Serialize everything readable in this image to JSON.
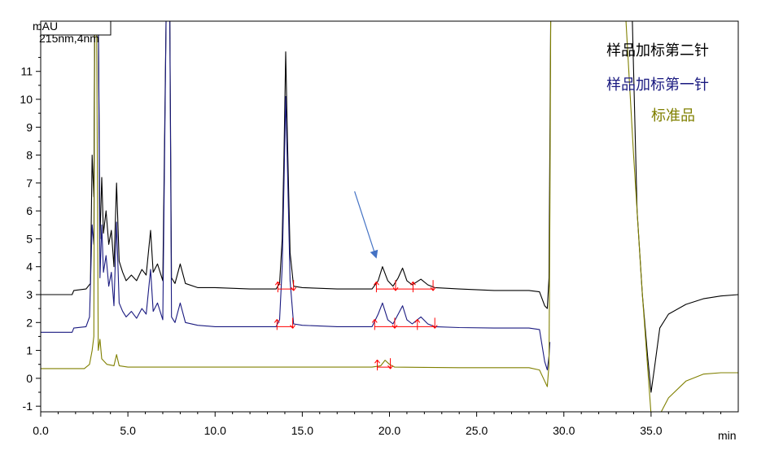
{
  "chart_data": {
    "type": "line",
    "title": "",
    "subtitle": "",
    "y_unit": "mAU",
    "detector_note": "215nm,4nm",
    "x_unit": "min",
    "xlim": [
      0,
      40
    ],
    "ylim": [
      -1.2,
      12.8
    ],
    "x_ticks": [
      0,
      5,
      10,
      15,
      20,
      25,
      30,
      35
    ],
    "x_tick_labels": [
      "0.0",
      "5.0",
      "10.0",
      "15.0",
      "20.0",
      "25.0",
      "30.0",
      "35.0"
    ],
    "y_ticks": [
      -1,
      0,
      1,
      2,
      3,
      4,
      5,
      6,
      7,
      8,
      9,
      10,
      11
    ],
    "y_tick_labels": [
      "-1",
      "0",
      "1",
      "2",
      "3",
      "4",
      "5",
      "6",
      "7",
      "8",
      "9",
      "10",
      "11"
    ],
    "grid": false,
    "legend_position": "top-right",
    "series": [
      {
        "name": "样品加标第二针",
        "color": "#000000",
        "baseline": 3.0,
        "points": [
          [
            0,
            3.0
          ],
          [
            1.8,
            3.0
          ],
          [
            1.9,
            3.15
          ],
          [
            2.6,
            3.2
          ],
          [
            2.85,
            3.4
          ],
          [
            2.95,
            8.0
          ],
          [
            3.05,
            6.5
          ],
          [
            3.1,
            13.5
          ],
          [
            3.3,
            13.5
          ],
          [
            3.4,
            5.0
          ],
          [
            3.5,
            7.2
          ],
          [
            3.6,
            5.2
          ],
          [
            3.75,
            6.0
          ],
          [
            3.9,
            4.8
          ],
          [
            4.05,
            5.3
          ],
          [
            4.2,
            4.0
          ],
          [
            4.35,
            7.0
          ],
          [
            4.5,
            4.2
          ],
          [
            4.7,
            3.8
          ],
          [
            4.9,
            3.5
          ],
          [
            5.2,
            3.7
          ],
          [
            5.5,
            3.5
          ],
          [
            5.8,
            3.9
          ],
          [
            6.05,
            3.7
          ],
          [
            6.3,
            5.3
          ],
          [
            6.45,
            3.8
          ],
          [
            6.7,
            4.1
          ],
          [
            7.0,
            3.5
          ],
          [
            7.2,
            13.5
          ],
          [
            7.4,
            13.5
          ],
          [
            7.5,
            3.6
          ],
          [
            7.7,
            3.4
          ],
          [
            8.0,
            4.1
          ],
          [
            8.3,
            3.4
          ],
          [
            9.0,
            3.25
          ],
          [
            10,
            3.25
          ],
          [
            12,
            3.2
          ],
          [
            13.5,
            3.2
          ],
          [
            13.7,
            3.4
          ],
          [
            13.85,
            5.0
          ],
          [
            13.95,
            8.0
          ],
          [
            14.05,
            11.7
          ],
          [
            14.15,
            8.5
          ],
          [
            14.3,
            4.5
          ],
          [
            14.5,
            3.3
          ],
          [
            15,
            3.25
          ],
          [
            17,
            3.2
          ],
          [
            19,
            3.2
          ],
          [
            19.35,
            3.5
          ],
          [
            19.6,
            4.0
          ],
          [
            19.9,
            3.5
          ],
          [
            20.2,
            3.3
          ],
          [
            20.5,
            3.6
          ],
          [
            20.75,
            3.95
          ],
          [
            21.0,
            3.5
          ],
          [
            21.3,
            3.35
          ],
          [
            21.8,
            3.55
          ],
          [
            22.2,
            3.35
          ],
          [
            22.6,
            3.25
          ],
          [
            24,
            3.2
          ],
          [
            26,
            3.15
          ],
          [
            28,
            3.15
          ],
          [
            28.6,
            3.1
          ],
          [
            28.9,
            2.6
          ],
          [
            29.05,
            2.5
          ],
          [
            29.15,
            3.6
          ],
          [
            29.25,
            13.5
          ],
          [
            33.9,
            13.5
          ],
          [
            34.2,
            6.0
          ],
          [
            34.5,
            3.0
          ],
          [
            34.8,
            0.8
          ],
          [
            35.0,
            -0.5
          ],
          [
            35.2,
            0.4
          ],
          [
            35.5,
            1.8
          ],
          [
            36,
            2.3
          ],
          [
            37,
            2.65
          ],
          [
            38,
            2.85
          ],
          [
            39,
            2.95
          ],
          [
            40,
            3.0
          ]
        ]
      },
      {
        "name": "样品加标第一针",
        "color": "#1a1a80",
        "baseline": 1.7,
        "points": [
          [
            0,
            1.65
          ],
          [
            1.8,
            1.65
          ],
          [
            1.9,
            1.8
          ],
          [
            2.6,
            1.85
          ],
          [
            2.8,
            2.2
          ],
          [
            2.95,
            5.5
          ],
          [
            3.05,
            4.8
          ],
          [
            3.1,
            13.5
          ],
          [
            3.3,
            13.5
          ],
          [
            3.4,
            3.6
          ],
          [
            3.5,
            5.5
          ],
          [
            3.6,
            3.8
          ],
          [
            3.75,
            4.4
          ],
          [
            3.9,
            3.3
          ],
          [
            4.05,
            3.8
          ],
          [
            4.2,
            2.6
          ],
          [
            4.35,
            5.6
          ],
          [
            4.5,
            2.7
          ],
          [
            4.7,
            2.4
          ],
          [
            4.9,
            2.2
          ],
          [
            5.2,
            2.4
          ],
          [
            5.5,
            2.15
          ],
          [
            5.8,
            2.5
          ],
          [
            6.05,
            2.3
          ],
          [
            6.3,
            3.9
          ],
          [
            6.45,
            2.4
          ],
          [
            6.7,
            2.7
          ],
          [
            7.0,
            2.1
          ],
          [
            7.2,
            13.5
          ],
          [
            7.4,
            13.5
          ],
          [
            7.5,
            2.2
          ],
          [
            7.7,
            2.0
          ],
          [
            8.0,
            2.7
          ],
          [
            8.3,
            2.0
          ],
          [
            9.0,
            1.9
          ],
          [
            10,
            1.85
          ],
          [
            12,
            1.85
          ],
          [
            13.5,
            1.85
          ],
          [
            13.7,
            2.1
          ],
          [
            13.85,
            4.0
          ],
          [
            13.95,
            7.0
          ],
          [
            14.05,
            10.1
          ],
          [
            14.15,
            7.5
          ],
          [
            14.3,
            3.5
          ],
          [
            14.5,
            1.95
          ],
          [
            15,
            1.9
          ],
          [
            17,
            1.85
          ],
          [
            19,
            1.85
          ],
          [
            19.35,
            2.3
          ],
          [
            19.6,
            2.7
          ],
          [
            19.9,
            2.1
          ],
          [
            20.2,
            1.95
          ],
          [
            20.5,
            2.3
          ],
          [
            20.75,
            2.6
          ],
          [
            21.0,
            2.1
          ],
          [
            21.3,
            1.95
          ],
          [
            21.8,
            2.2
          ],
          [
            22.2,
            1.95
          ],
          [
            22.6,
            1.85
          ],
          [
            24,
            1.82
          ],
          [
            26,
            1.8
          ],
          [
            28,
            1.8
          ],
          [
            28.6,
            1.75
          ],
          [
            28.9,
            0.6
          ],
          [
            29.05,
            0.3
          ],
          [
            29.15,
            0.8
          ],
          [
            29.2,
            1.3
          ]
        ]
      },
      {
        "name": "标准品",
        "color": "#808000",
        "baseline": 0.35,
        "points": [
          [
            0,
            0.35
          ],
          [
            2.5,
            0.35
          ],
          [
            2.8,
            0.5
          ],
          [
            2.95,
            1.0
          ],
          [
            3.05,
            1.5
          ],
          [
            3.1,
            13.5
          ],
          [
            3.2,
            13.5
          ],
          [
            3.3,
            1.0
          ],
          [
            3.4,
            1.4
          ],
          [
            3.5,
            0.7
          ],
          [
            3.8,
            0.5
          ],
          [
            4.2,
            0.45
          ],
          [
            4.35,
            0.85
          ],
          [
            4.5,
            0.45
          ],
          [
            5,
            0.4
          ],
          [
            8,
            0.4
          ],
          [
            10,
            0.4
          ],
          [
            14,
            0.4
          ],
          [
            16,
            0.4
          ],
          [
            19,
            0.4
          ],
          [
            19.5,
            0.45
          ],
          [
            19.75,
            0.65
          ],
          [
            20.0,
            0.5
          ],
          [
            20.3,
            0.4
          ],
          [
            24,
            0.38
          ],
          [
            28,
            0.38
          ],
          [
            28.6,
            0.3
          ],
          [
            28.9,
            -0.1
          ],
          [
            29.05,
            -0.3
          ],
          [
            29.15,
            0.5
          ],
          [
            29.2,
            6.0
          ],
          [
            29.25,
            13.5
          ],
          [
            33.5,
            13.5
          ],
          [
            34,
            8.0
          ],
          [
            34.5,
            3.0
          ],
          [
            35.0,
            -1.3
          ],
          [
            35.5,
            -1.3
          ],
          [
            36,
            -0.7
          ],
          [
            37,
            -0.1
          ],
          [
            38,
            0.15
          ],
          [
            39,
            0.2
          ],
          [
            40,
            0.2
          ]
        ]
      }
    ],
    "integration_marks": {
      "color": "#ff0000",
      "groups": [
        {
          "series": 0,
          "y": 3.2,
          "x": [
            13.6,
            14.5
          ]
        },
        {
          "series": 0,
          "y": 3.2,
          "x": [
            19.25,
            20.35,
            21.35,
            22.5
          ]
        },
        {
          "series": 1,
          "y": 1.85,
          "x": [
            13.55,
            14.45
          ]
        },
        {
          "series": 1,
          "y": 1.85,
          "x": [
            19.15,
            20.3,
            21.6,
            22.6
          ]
        },
        {
          "series": 2,
          "y": 0.4,
          "x": [
            19.3,
            20.05
          ]
        }
      ]
    },
    "annotation_arrow": {
      "color": "#4472c4",
      "from": [
        18.0,
        6.7
      ],
      "to": [
        19.2,
        4.4
      ]
    }
  }
}
